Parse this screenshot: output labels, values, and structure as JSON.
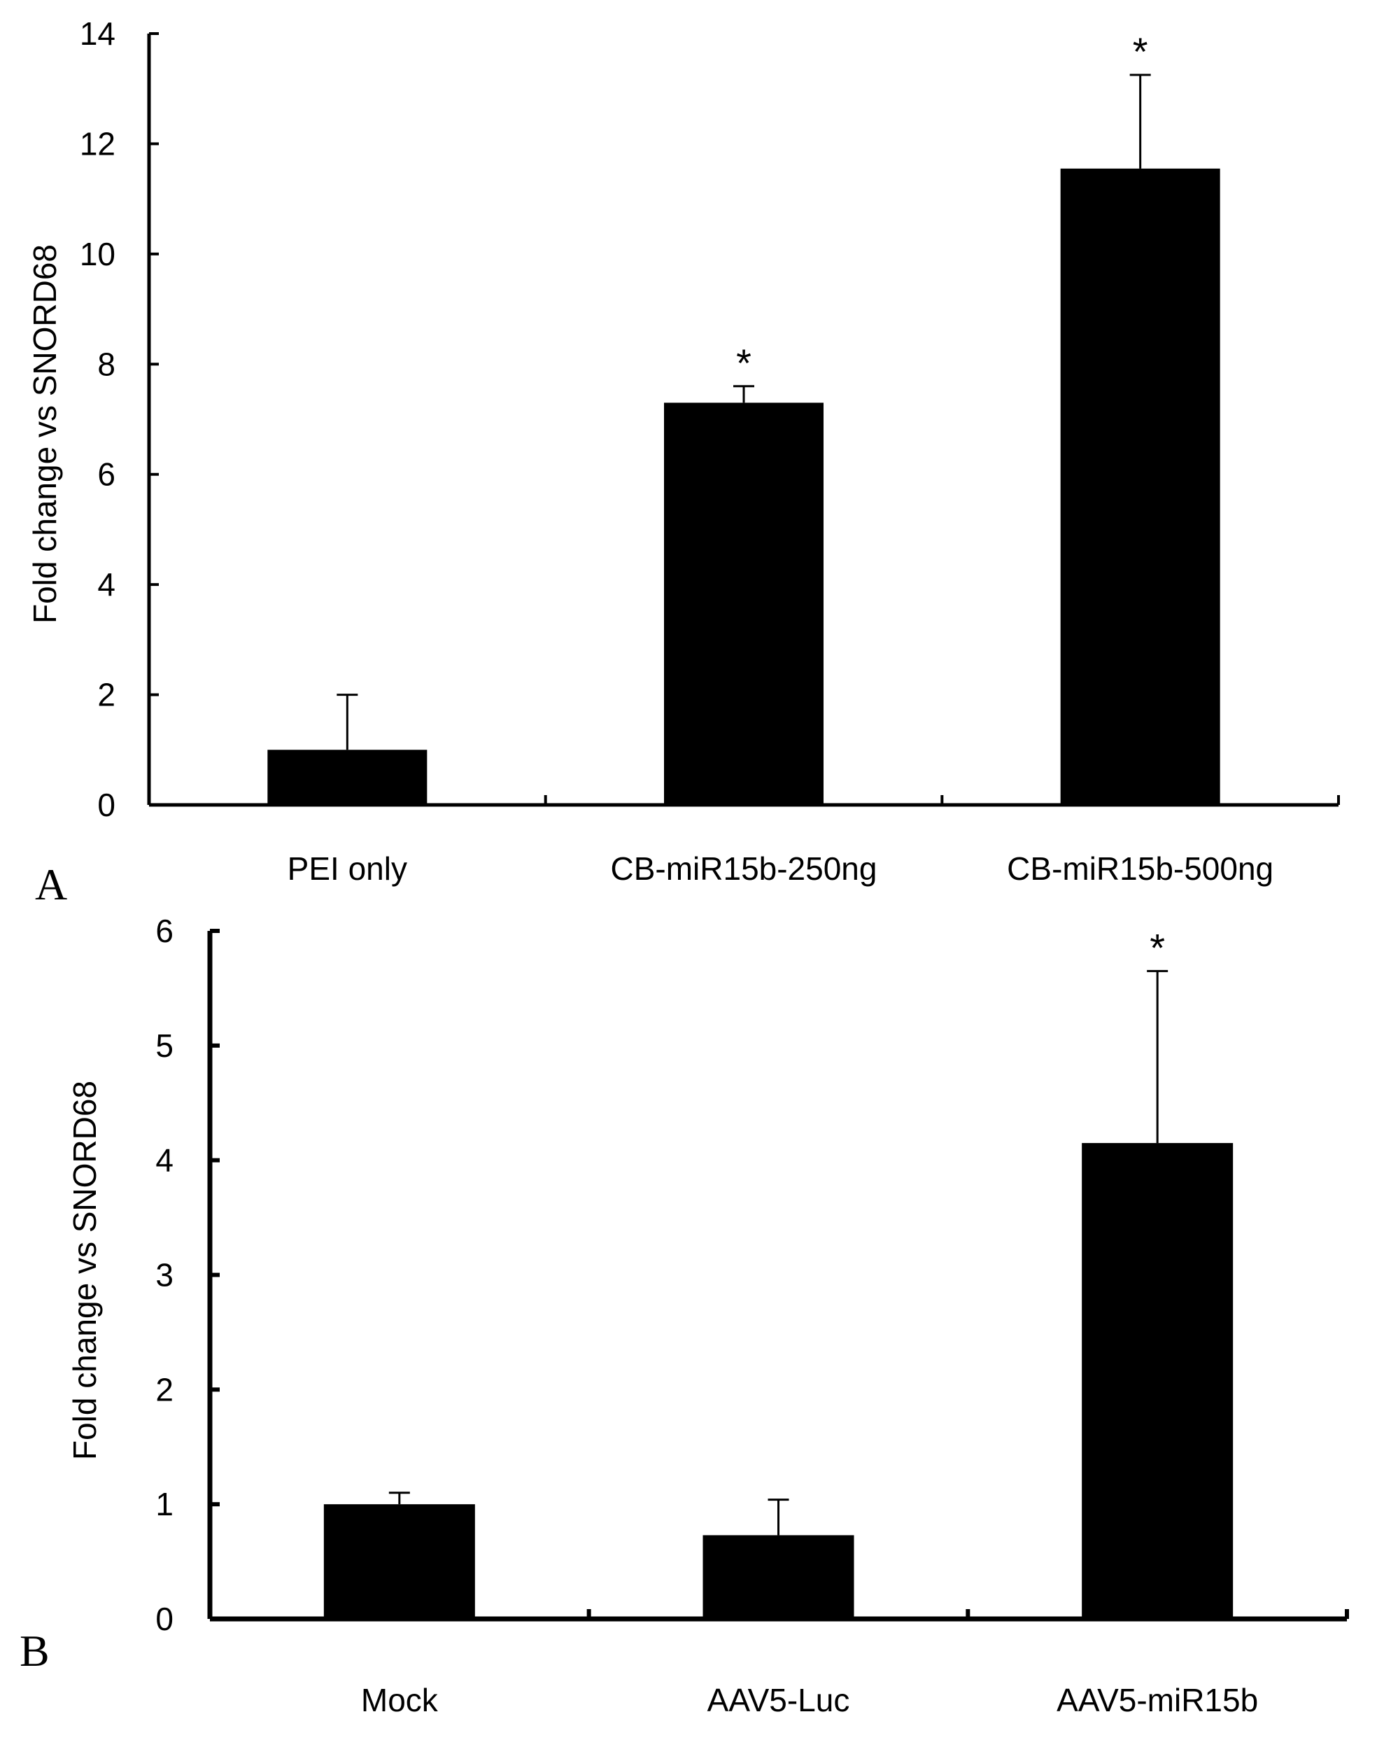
{
  "chart_data": [
    {
      "type": "bar",
      "panel_label": "A",
      "ylabel": "Fold change vs SNORD68",
      "ylim": [
        0,
        14
      ],
      "yticks": [
        0,
        2,
        4,
        6,
        8,
        10,
        12,
        14
      ],
      "categories": [
        "PEI only",
        "CB-miR15b-250ng",
        "CB-miR15b-500ng"
      ],
      "values": [
        1.0,
        7.3,
        11.55
      ],
      "errors": [
        1.0,
        0.3,
        1.7
      ],
      "significance": [
        "",
        "*",
        "*"
      ],
      "bar_color": "#000000"
    },
    {
      "type": "bar",
      "panel_label": "B",
      "ylabel": "Fold change vs SNORD68",
      "ylim": [
        0,
        6
      ],
      "yticks": [
        0,
        1,
        2,
        3,
        4,
        5,
        6
      ],
      "categories": [
        "Mock",
        "AAV5-Luc",
        "AAV5-miR15b"
      ],
      "values": [
        1.0,
        0.73,
        4.15
      ],
      "errors": [
        0.1,
        0.31,
        1.5
      ],
      "significance": [
        "",
        "",
        "*"
      ],
      "bar_color": "#000000"
    }
  ]
}
